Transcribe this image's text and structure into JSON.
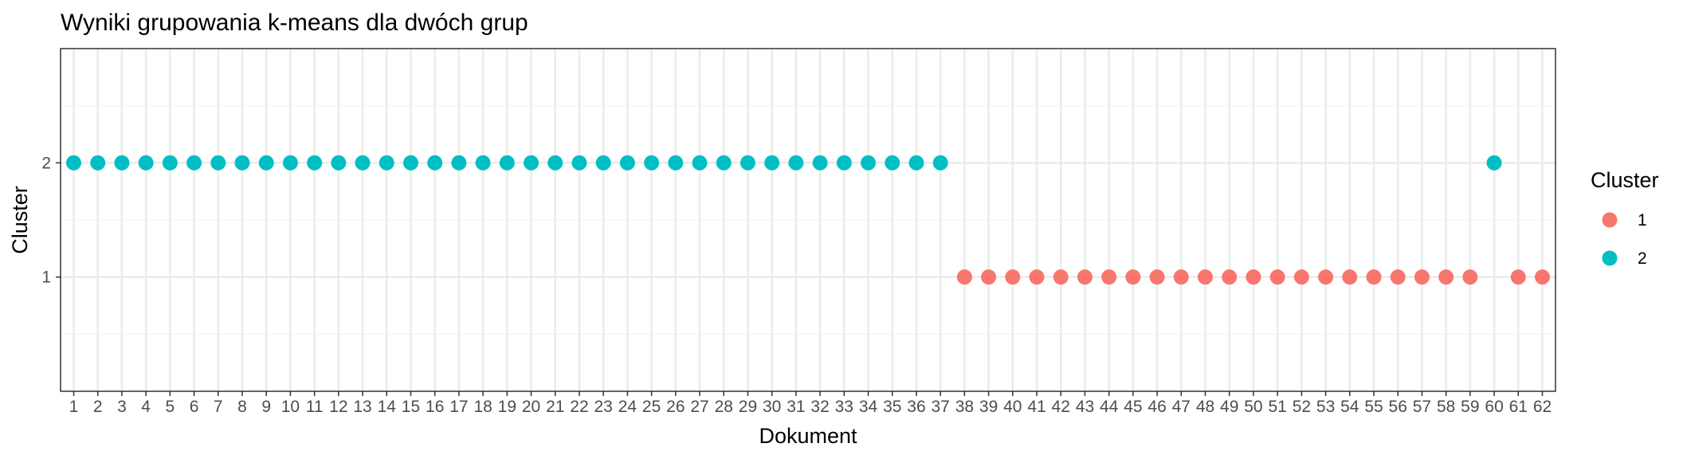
{
  "chart_data": {
    "type": "scatter",
    "title": "Wyniki grupowania k-means dla dwóch grup",
    "xlabel": "Dokument",
    "ylabel": "Cluster",
    "x_categories": [
      "1",
      "2",
      "3",
      "4",
      "5",
      "6",
      "7",
      "8",
      "9",
      "10",
      "11",
      "12",
      "13",
      "14",
      "15",
      "16",
      "17",
      "18",
      "19",
      "20",
      "21",
      "22",
      "23",
      "24",
      "25",
      "26",
      "27",
      "28",
      "29",
      "30",
      "31",
      "32",
      "33",
      "34",
      "35",
      "36",
      "37",
      "38",
      "39",
      "40",
      "41",
      "42",
      "43",
      "44",
      "45",
      "46",
      "47",
      "48",
      "49",
      "50",
      "51",
      "52",
      "53",
      "54",
      "55",
      "56",
      "57",
      "58",
      "59",
      "60",
      "61",
      "62"
    ],
    "y_ticks": [
      "1",
      "2"
    ],
    "ylim": [
      0,
      3
    ],
    "points": [
      {
        "x": "1",
        "cluster": "2"
      },
      {
        "x": "2",
        "cluster": "2"
      },
      {
        "x": "3",
        "cluster": "2"
      },
      {
        "x": "4",
        "cluster": "2"
      },
      {
        "x": "5",
        "cluster": "2"
      },
      {
        "x": "6",
        "cluster": "2"
      },
      {
        "x": "7",
        "cluster": "2"
      },
      {
        "x": "8",
        "cluster": "2"
      },
      {
        "x": "9",
        "cluster": "2"
      },
      {
        "x": "10",
        "cluster": "2"
      },
      {
        "x": "11",
        "cluster": "2"
      },
      {
        "x": "12",
        "cluster": "2"
      },
      {
        "x": "13",
        "cluster": "2"
      },
      {
        "x": "14",
        "cluster": "2"
      },
      {
        "x": "15",
        "cluster": "2"
      },
      {
        "x": "16",
        "cluster": "2"
      },
      {
        "x": "17",
        "cluster": "2"
      },
      {
        "x": "18",
        "cluster": "2"
      },
      {
        "x": "19",
        "cluster": "2"
      },
      {
        "x": "20",
        "cluster": "2"
      },
      {
        "x": "21",
        "cluster": "2"
      },
      {
        "x": "22",
        "cluster": "2"
      },
      {
        "x": "23",
        "cluster": "2"
      },
      {
        "x": "24",
        "cluster": "2"
      },
      {
        "x": "25",
        "cluster": "2"
      },
      {
        "x": "26",
        "cluster": "2"
      },
      {
        "x": "27",
        "cluster": "2"
      },
      {
        "x": "28",
        "cluster": "2"
      },
      {
        "x": "29",
        "cluster": "2"
      },
      {
        "x": "30",
        "cluster": "2"
      },
      {
        "x": "31",
        "cluster": "2"
      },
      {
        "x": "32",
        "cluster": "2"
      },
      {
        "x": "33",
        "cluster": "2"
      },
      {
        "x": "34",
        "cluster": "2"
      },
      {
        "x": "35",
        "cluster": "2"
      },
      {
        "x": "36",
        "cluster": "2"
      },
      {
        "x": "37",
        "cluster": "2"
      },
      {
        "x": "38",
        "cluster": "1"
      },
      {
        "x": "39",
        "cluster": "1"
      },
      {
        "x": "40",
        "cluster": "1"
      },
      {
        "x": "41",
        "cluster": "1"
      },
      {
        "x": "42",
        "cluster": "1"
      },
      {
        "x": "43",
        "cluster": "1"
      },
      {
        "x": "44",
        "cluster": "1"
      },
      {
        "x": "45",
        "cluster": "1"
      },
      {
        "x": "46",
        "cluster": "1"
      },
      {
        "x": "47",
        "cluster": "1"
      },
      {
        "x": "48",
        "cluster": "1"
      },
      {
        "x": "49",
        "cluster": "1"
      },
      {
        "x": "50",
        "cluster": "1"
      },
      {
        "x": "51",
        "cluster": "1"
      },
      {
        "x": "52",
        "cluster": "1"
      },
      {
        "x": "53",
        "cluster": "1"
      },
      {
        "x": "54",
        "cluster": "1"
      },
      {
        "x": "55",
        "cluster": "1"
      },
      {
        "x": "56",
        "cluster": "1"
      },
      {
        "x": "57",
        "cluster": "1"
      },
      {
        "x": "58",
        "cluster": "1"
      },
      {
        "x": "59",
        "cluster": "1"
      },
      {
        "x": "60",
        "cluster": "2"
      },
      {
        "x": "61",
        "cluster": "1"
      },
      {
        "x": "62",
        "cluster": "1"
      }
    ],
    "legend": {
      "title": "Cluster",
      "position": "right",
      "entries": [
        {
          "label": "1",
          "color": "#F8766D"
        },
        {
          "label": "2",
          "color": "#00BFC4"
        }
      ]
    },
    "grid": true
  },
  "colors": {
    "panel_border": "#333333",
    "grid_major": "#ebebeb",
    "grid_minor": "#f5f5f5",
    "tick_text": "#4d4d4d"
  }
}
